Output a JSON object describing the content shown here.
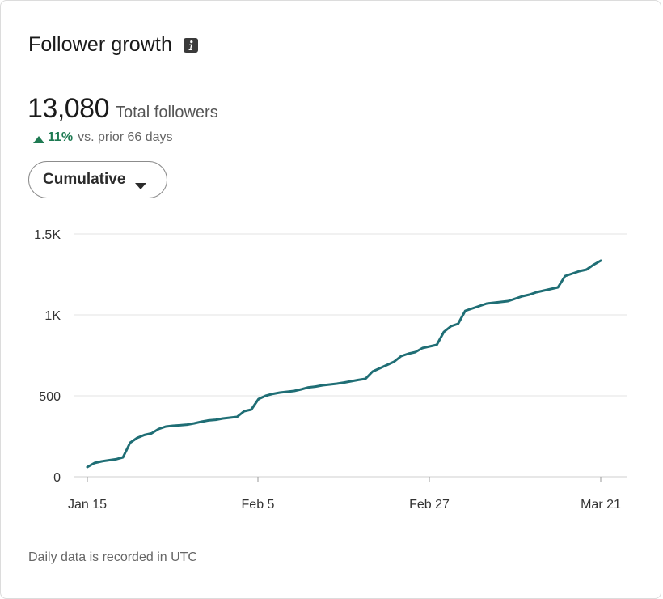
{
  "card": {
    "title": "Follower growth",
    "info_icon": "info-icon",
    "total_followers": "13,080",
    "total_label": "Total followers",
    "change_icon": "up-triangle-icon",
    "change_pct": "11%",
    "change_label": "vs. prior 66 days",
    "dropdown_label": "Cumulative",
    "dropdown_icon": "caret-down-icon",
    "footnote": "Daily data is recorded in UTC"
  },
  "colors": {
    "line": "#1f6e75",
    "positive": "#1e7a52",
    "grid": "#e3e3e3"
  },
  "chart_data": {
    "type": "line",
    "title": "",
    "xlabel": "",
    "ylabel": "",
    "ylim": [
      0,
      1500
    ],
    "yticks": [
      0,
      500,
      1000,
      1500
    ],
    "ytick_labels": [
      "0",
      "500",
      "1K",
      "1.5K"
    ],
    "xtick_labels": [
      "Jan 15",
      "Feb 5",
      "Feb 27",
      "Mar 21"
    ],
    "grid": true,
    "series": [
      {
        "values": [
          60,
          85,
          95,
          102,
          108,
          120,
          210,
          240,
          258,
          268,
          295,
          310,
          315,
          318,
          322,
          330,
          340,
          348,
          352,
          360,
          365,
          370,
          405,
          415,
          480,
          500,
          512,
          520,
          525,
          530,
          540,
          552,
          557,
          565,
          570,
          575,
          582,
          590,
          598,
          605,
          650,
          670,
          690,
          710,
          745,
          760,
          770,
          795,
          805,
          815,
          895,
          930,
          945,
          1025,
          1040,
          1055,
          1070,
          1075,
          1080,
          1085,
          1100,
          1115,
          1125,
          1140,
          1150,
          1160,
          1170,
          1240,
          1255,
          1270,
          1280,
          1310,
          1335
        ]
      }
    ]
  }
}
